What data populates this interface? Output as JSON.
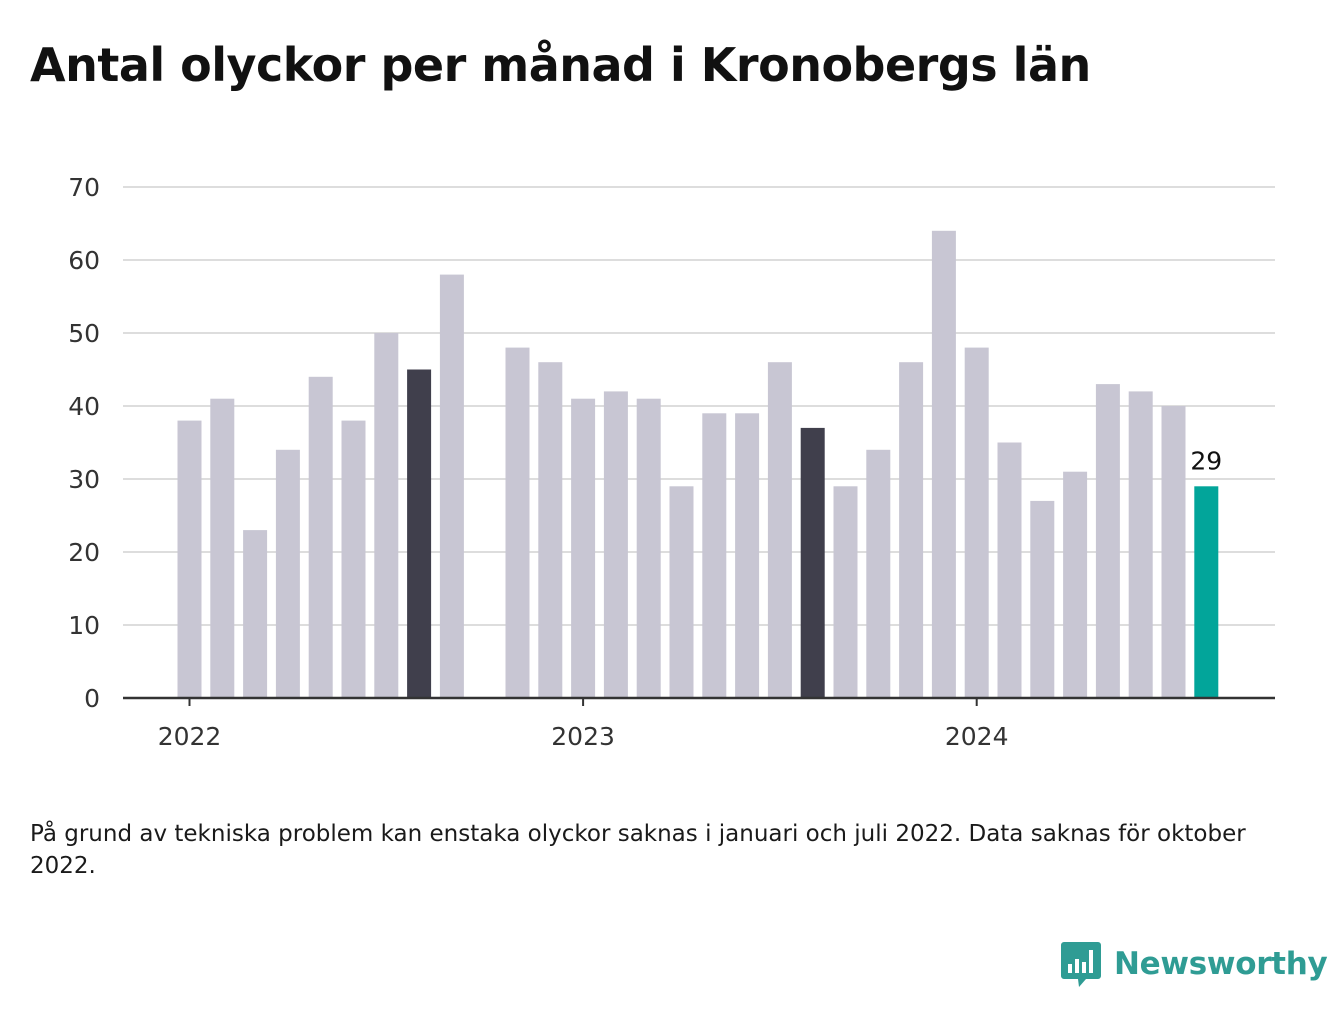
{
  "title": "Antal olyckor per månad i Kronobergs län",
  "note": "På grund av tekniska problem kan enstaka olyckor saknas i januari och juli 2022. Data saknas för oktober 2022.",
  "brand": {
    "name": "Newsworthy",
    "icon": "bar-chart-logo-icon"
  },
  "colors": {
    "bar": "#c8c6d3",
    "highlight": "#403f4c",
    "latest": "#02a59a",
    "grid": "#dddddd",
    "axis": "#333333"
  },
  "chart_data": {
    "type": "bar",
    "ylim": [
      0,
      70
    ],
    "yticks": [
      "0",
      "10",
      "20",
      "30",
      "40",
      "50",
      "60",
      "70"
    ],
    "xticks": [
      {
        "label": "2022",
        "month": "2022-01"
      },
      {
        "label": "2023",
        "month": "2023-01"
      },
      {
        "label": "2024",
        "month": "2024-01"
      }
    ],
    "grid": true,
    "bars": [
      {
        "month": "2022-01",
        "value": 38,
        "style": "bar"
      },
      {
        "month": "2022-02",
        "value": 41,
        "style": "bar"
      },
      {
        "month": "2022-03",
        "value": 23,
        "style": "bar"
      },
      {
        "month": "2022-04",
        "value": 34,
        "style": "bar"
      },
      {
        "month": "2022-05",
        "value": 44,
        "style": "bar"
      },
      {
        "month": "2022-06",
        "value": 38,
        "style": "bar"
      },
      {
        "month": "2022-07",
        "value": 50,
        "style": "bar"
      },
      {
        "month": "2022-08",
        "value": 45,
        "style": "highlight"
      },
      {
        "month": "2022-09",
        "value": 58,
        "style": "bar"
      },
      {
        "month": "2022-10",
        "value": null,
        "style": "bar"
      },
      {
        "month": "2022-11",
        "value": 48,
        "style": "bar"
      },
      {
        "month": "2022-12",
        "value": 46,
        "style": "bar"
      },
      {
        "month": "2023-01",
        "value": 41,
        "style": "bar"
      },
      {
        "month": "2023-02",
        "value": 42,
        "style": "bar"
      },
      {
        "month": "2023-03",
        "value": 41,
        "style": "bar"
      },
      {
        "month": "2023-04",
        "value": 29,
        "style": "bar"
      },
      {
        "month": "2023-05",
        "value": 39,
        "style": "bar"
      },
      {
        "month": "2023-06",
        "value": 39,
        "style": "bar"
      },
      {
        "month": "2023-07",
        "value": 46,
        "style": "bar"
      },
      {
        "month": "2023-08",
        "value": 37,
        "style": "highlight"
      },
      {
        "month": "2023-09",
        "value": 29,
        "style": "bar"
      },
      {
        "month": "2023-10",
        "value": 34,
        "style": "bar"
      },
      {
        "month": "2023-11",
        "value": 46,
        "style": "bar"
      },
      {
        "month": "2023-12",
        "value": 64,
        "style": "bar"
      },
      {
        "month": "2024-01",
        "value": 48,
        "style": "bar"
      },
      {
        "month": "2024-02",
        "value": 35,
        "style": "bar"
      },
      {
        "month": "2024-03",
        "value": 27,
        "style": "bar"
      },
      {
        "month": "2024-04",
        "value": 31,
        "style": "bar"
      },
      {
        "month": "2024-05",
        "value": 43,
        "style": "bar"
      },
      {
        "month": "2024-06",
        "value": 42,
        "style": "bar"
      },
      {
        "month": "2024-07",
        "value": 40,
        "style": "bar"
      },
      {
        "month": "2024-08",
        "value": 29,
        "style": "latest",
        "label": "29"
      }
    ]
  }
}
